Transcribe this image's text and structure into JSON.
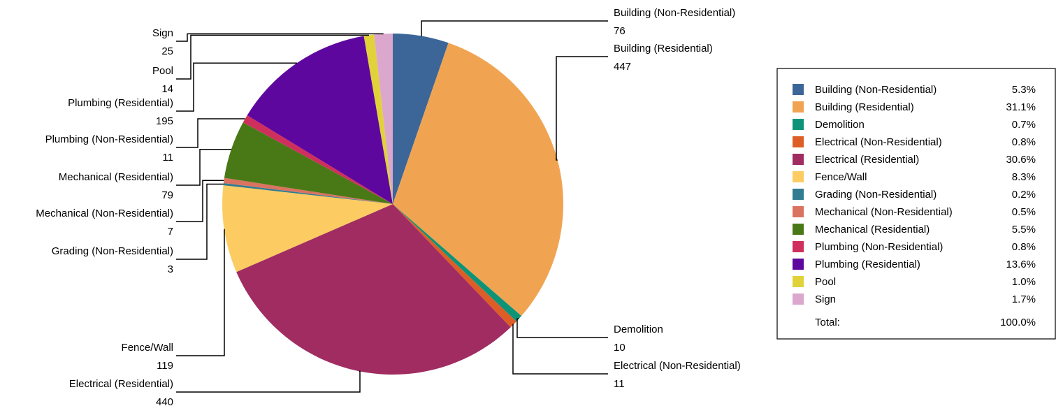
{
  "chart_data": {
    "type": "pie",
    "legend_position": "right",
    "slices": [
      {
        "name": "Building (Non-Residential)",
        "value": 76,
        "percent": "5.3%",
        "color": "#3c6698"
      },
      {
        "name": "Building (Residential)",
        "value": 447,
        "percent": "31.1%",
        "color": "#f0a452"
      },
      {
        "name": "Demolition",
        "value": 10,
        "percent": "0.7%",
        "color": "#0d9478"
      },
      {
        "name": "Electrical (Non-Residential)",
        "value": 11,
        "percent": "0.8%",
        "color": "#de5d26"
      },
      {
        "name": "Electrical (Residential)",
        "value": 440,
        "percent": "30.6%",
        "color": "#a02c61"
      },
      {
        "name": "Fence/Wall",
        "value": 119,
        "percent": "8.3%",
        "color": "#fccc62"
      },
      {
        "name": "Grading (Non-Residential)",
        "value": 3,
        "percent": "0.2%",
        "color": "#317c91"
      },
      {
        "name": "Mechanical (Non-Residential)",
        "value": 7,
        "percent": "0.5%",
        "color": "#da735f"
      },
      {
        "name": "Mechanical (Residential)",
        "value": 79,
        "percent": "5.5%",
        "color": "#497916"
      },
      {
        "name": "Plumbing (Non-Residential)",
        "value": 11,
        "percent": "0.8%",
        "color": "#cf2f5c"
      },
      {
        "name": "Plumbing (Residential)",
        "value": 195,
        "percent": "13.6%",
        "color": "#5e079e"
      },
      {
        "name": "Pool",
        "value": 14,
        "percent": "1.0%",
        "color": "#e1d23a"
      },
      {
        "name": "Sign",
        "value": 25,
        "percent": "1.7%",
        "color": "#dba7cd"
      }
    ],
    "total_label": "Total:",
    "total_percent": "100.0%"
  }
}
